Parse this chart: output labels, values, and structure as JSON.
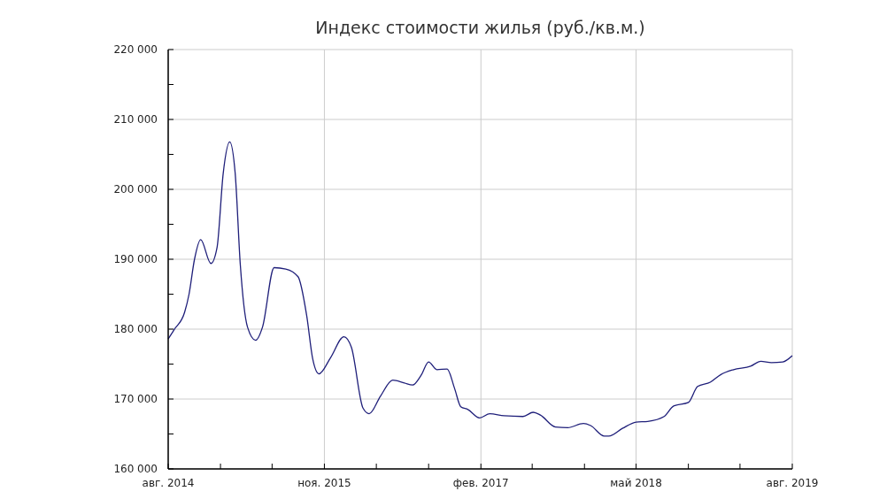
{
  "chart_data": {
    "type": "line",
    "title": "Индекс стоимости жилья (руб./кв.м.)",
    "x": [
      "2014-08-01",
      "2014-08-18",
      "2014-09-18",
      "2014-10-01",
      "2014-10-17",
      "2014-11-04",
      "2014-12-04",
      "2014-12-22",
      "2015-01-09",
      "2015-01-28",
      "2015-02-13",
      "2015-02-28",
      "2015-03-21",
      "2015-04-14",
      "2015-05-04",
      "2015-06-07",
      "2015-07-11",
      "2015-08-16",
      "2015-09-10",
      "2015-09-28",
      "2015-10-16",
      "2015-11-19",
      "2015-12-28",
      "2016-01-19",
      "2016-02-22",
      "2016-03-11",
      "2016-04-13",
      "2016-05-19",
      "2016-06-22",
      "2016-07-16",
      "2016-08-10",
      "2016-09-01",
      "2016-09-25",
      "2016-10-25",
      "2016-11-16",
      "2016-12-04",
      "2016-12-25",
      "2017-01-28",
      "2017-02-27",
      "2017-04-10",
      "2017-06-04",
      "2017-07-04",
      "2017-07-25",
      "2017-09-07",
      "2017-10-13",
      "2017-11-28",
      "2017-12-19",
      "2018-01-28",
      "2018-02-10",
      "2018-03-22",
      "2018-05-01",
      "2018-06-04",
      "2018-07-22",
      "2018-08-19",
      "2018-10-01",
      "2018-10-28",
      "2018-12-04",
      "2019-01-04",
      "2019-02-10",
      "2019-04-01",
      "2019-05-01",
      "2019-06-01",
      "2019-07-04",
      "2019-08-01"
    ],
    "series": [
      {
        "color": "#1f1f7a",
        "values": [
          178600,
          179900,
          182400,
          185000,
          190000,
          192800,
          189400,
          191700,
          202300,
          206800,
          202300,
          189200,
          180300,
          178400,
          180300,
          188800,
          188600,
          187500,
          182000,
          175700,
          173600,
          175900,
          178900,
          177400,
          168700,
          167900,
          170400,
          172700,
          172300,
          172000,
          173400,
          175300,
          174200,
          174300,
          171500,
          168900,
          168500,
          167300,
          167900,
          167600,
          167500,
          168100,
          167700,
          166000,
          165900,
          166500,
          166200,
          164700,
          164700,
          165800,
          166700,
          166800,
          167500,
          169000,
          169500,
          171800,
          172400,
          173500,
          174200,
          174700,
          175400,
          175200,
          175300,
          176200
        ]
      }
    ],
    "xlim": [
      "2014-08-01",
      "2019-08-01"
    ],
    "xticks": [
      {
        "value": "2014-08-01",
        "label": "авг. 2014"
      },
      {
        "value": "2015-01-01",
        "label": null
      },
      {
        "value": "2015-06-01",
        "label": null
      },
      {
        "value": "2015-11-01",
        "label": "ноя. 2015"
      },
      {
        "value": "2016-04-01",
        "label": null
      },
      {
        "value": "2016-09-01",
        "label": null
      },
      {
        "value": "2017-02-01",
        "label": "фев. 2017"
      },
      {
        "value": "2017-07-01",
        "label": null
      },
      {
        "value": "2017-12-01",
        "label": null
      },
      {
        "value": "2018-05-01",
        "label": "май 2018"
      },
      {
        "value": "2018-10-01",
        "label": null
      },
      {
        "value": "2019-03-01",
        "label": null
      },
      {
        "value": "2019-08-01",
        "label": "авг. 2019"
      }
    ],
    "ylim": [
      160000,
      220000
    ],
    "yticks": [
      {
        "value": 160000,
        "label": "160 000"
      },
      {
        "value": 165000,
        "label": null
      },
      {
        "value": 170000,
        "label": "170 000"
      },
      {
        "value": 175000,
        "label": null
      },
      {
        "value": 180000,
        "label": "180 000"
      },
      {
        "value": 185000,
        "label": null
      },
      {
        "value": 190000,
        "label": "190 000"
      },
      {
        "value": 195000,
        "label": null
      },
      {
        "value": 200000,
        "label": "200 000"
      },
      {
        "value": 205000,
        "label": null
      },
      {
        "value": 210000,
        "label": "210 000"
      },
      {
        "value": 215000,
        "label": null
      },
      {
        "value": 220000,
        "label": "220 000"
      }
    ],
    "grid": true,
    "marker": "none",
    "line_style": "solid"
  }
}
